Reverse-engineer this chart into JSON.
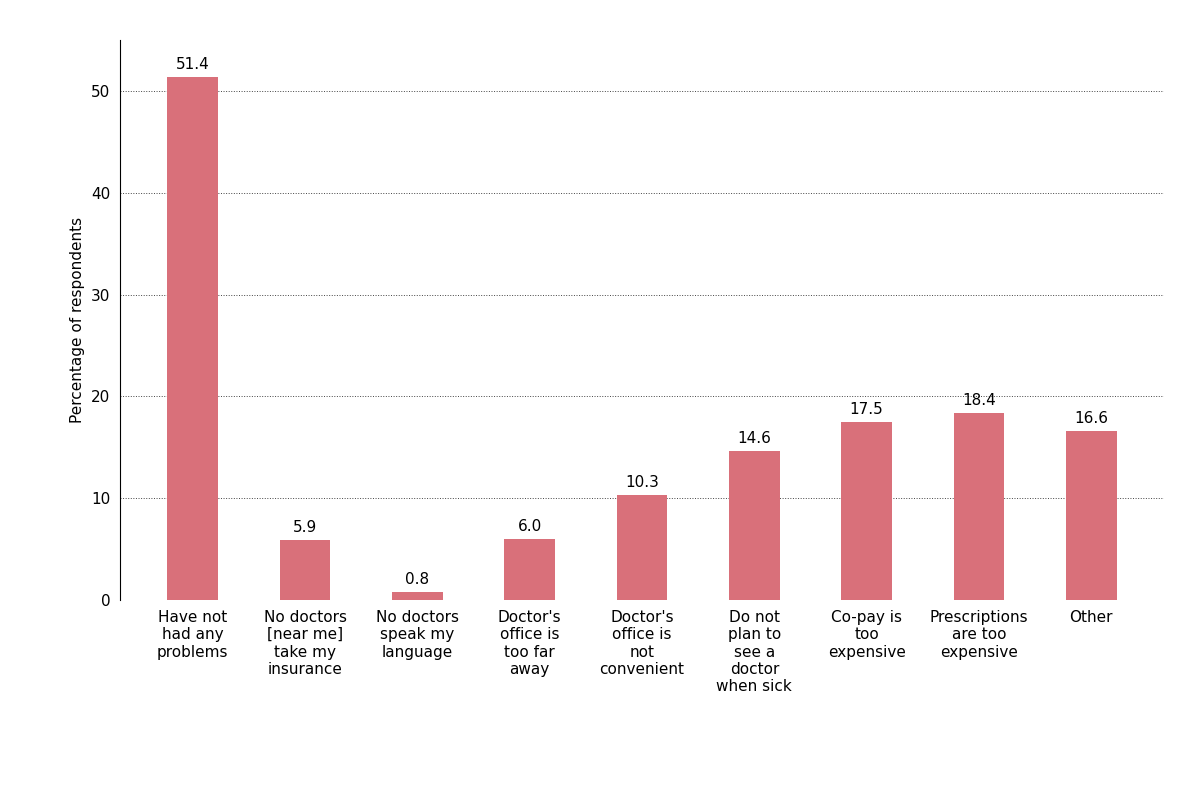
{
  "categories": [
    "Have not\nhad any\nproblems",
    "No doctors\n[near me]\ntake my\ninsurance",
    "No doctors\nspeak my\nlanguage",
    "Doctor's\noffice is\ntoo far\naway",
    "Doctor's\noffice is\nnot\nconvenient",
    "Do not\nplan to\nsee a\ndoctor\nwhen sick",
    "Co-pay is\ntoo\nexpensive",
    "Prescriptions\nare too\nexpensive",
    "Other"
  ],
  "values": [
    51.4,
    5.9,
    0.8,
    6.0,
    10.3,
    14.6,
    17.5,
    18.4,
    16.6
  ],
  "bar_color": "#d9707a",
  "ylabel": "Percentage of respondents",
  "ylim": [
    0,
    55
  ],
  "yticks": [
    0,
    10,
    20,
    30,
    40,
    50
  ],
  "grid_color": "#444444",
  "label_fontsize": 11,
  "tick_fontsize": 11,
  "value_fontsize": 11,
  "bar_width": 0.45,
  "figsize": [
    12,
    8
  ]
}
